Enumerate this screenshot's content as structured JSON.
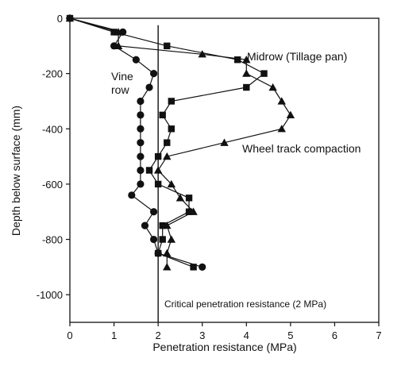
{
  "chart_data": {
    "type": "line",
    "title": "",
    "xlabel": "Penetration resistance (MPa)",
    "ylabel": "Depth below surface (mm)",
    "xlim": [
      0,
      7
    ],
    "ylim": [
      -1100,
      0
    ],
    "xticks": [
      0,
      1,
      2,
      3,
      4,
      5,
      6,
      7
    ],
    "yticks": [
      0,
      -200,
      -400,
      -600,
      -800,
      -1000
    ],
    "grid": false,
    "series": [
      {
        "name": "Vine row",
        "marker": "circle",
        "points": [
          [
            0,
            0
          ],
          [
            1.2,
            -50
          ],
          [
            1.0,
            -100
          ],
          [
            1.5,
            -150
          ],
          [
            1.9,
            -200
          ],
          [
            1.8,
            -250
          ],
          [
            1.6,
            -300
          ],
          [
            1.6,
            -350
          ],
          [
            1.6,
            -400
          ],
          [
            1.6,
            -450
          ],
          [
            1.6,
            -500
          ],
          [
            1.6,
            -550
          ],
          [
            1.6,
            -600
          ],
          [
            1.4,
            -640
          ],
          [
            1.9,
            -700
          ],
          [
            1.7,
            -750
          ],
          [
            1.9,
            -800
          ],
          [
            2.0,
            -850
          ],
          [
            3.0,
            -900
          ]
        ]
      },
      {
        "name": "Midrow (Tillage pan)",
        "marker": "square",
        "points": [
          [
            0,
            0
          ],
          [
            1.0,
            -50
          ],
          [
            2.2,
            -100
          ],
          [
            3.8,
            -150
          ],
          [
            4.4,
            -200
          ],
          [
            4.0,
            -250
          ],
          [
            2.3,
            -300
          ],
          [
            2.1,
            -350
          ],
          [
            2.3,
            -400
          ],
          [
            2.2,
            -450
          ],
          [
            2.0,
            -500
          ],
          [
            1.8,
            -550
          ],
          [
            2.0,
            -600
          ],
          [
            2.7,
            -650
          ],
          [
            2.7,
            -700
          ],
          [
            2.1,
            -750
          ],
          [
            2.1,
            -800
          ],
          [
            2.0,
            -850
          ],
          [
            2.8,
            -900
          ]
        ]
      },
      {
        "name": "Wheel track compaction",
        "marker": "triangle",
        "points": [
          [
            0,
            0
          ],
          [
            1.1,
            -50
          ],
          [
            1.1,
            -100
          ],
          [
            3.0,
            -130
          ],
          [
            4.0,
            -150
          ],
          [
            4.0,
            -200
          ],
          [
            4.6,
            -250
          ],
          [
            4.8,
            -300
          ],
          [
            5.0,
            -350
          ],
          [
            4.8,
            -400
          ],
          [
            3.5,
            -450
          ],
          [
            2.2,
            -500
          ],
          [
            2.0,
            -550
          ],
          [
            2.3,
            -600
          ],
          [
            2.5,
            -650
          ],
          [
            2.8,
            -700
          ],
          [
            2.2,
            -750
          ],
          [
            2.3,
            -800
          ],
          [
            2.2,
            -850
          ],
          [
            2.2,
            -900
          ]
        ]
      }
    ],
    "reference_line": {
      "x": 2,
      "label": "Critical penetration resistance (2 MPa)"
    },
    "annotations": {
      "midrow": "Midrow (Tillage pan)",
      "vine_line1": "Vine",
      "vine_line2": "row",
      "wheel": "Wheel track compaction"
    }
  }
}
